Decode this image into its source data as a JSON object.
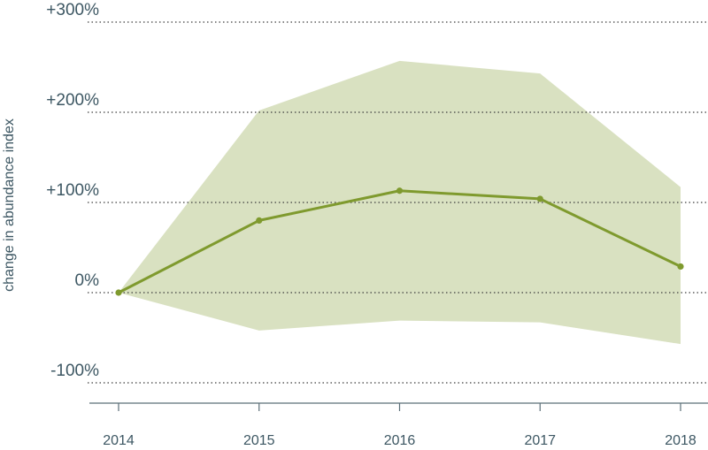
{
  "chart_data": {
    "type": "line",
    "title": "",
    "xlabel": "",
    "ylabel": "change in abundance index",
    "x": [
      "2014",
      "2015",
      "2016",
      "2017",
      "2018"
    ],
    "yticks": [
      -100,
      0,
      100,
      200,
      300
    ],
    "ytick_labels": [
      "-100%",
      "0%",
      "+100%",
      "+200%",
      "+300%"
    ],
    "ylim": [
      -120,
      310
    ],
    "grid": true,
    "series": [
      {
        "values": [
          0,
          80,
          113,
          104,
          29
        ],
        "color": "#7f9a2e"
      }
    ],
    "confidence_band": {
      "upper": [
        0,
        202,
        257,
        243,
        117
      ],
      "lower": [
        0,
        -42,
        -31,
        -33,
        -57
      ],
      "color": "#d9e1c1"
    }
  }
}
